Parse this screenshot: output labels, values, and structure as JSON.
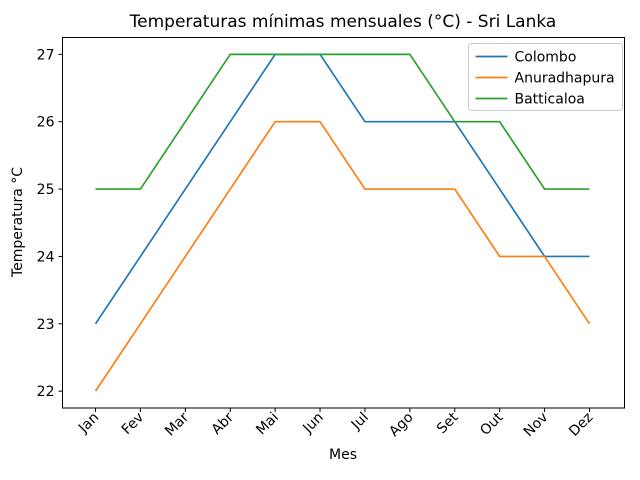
{
  "chart_data": {
    "type": "line",
    "title": "Temperaturas mínimas mensuales (°C) - Sri Lanka",
    "xlabel": "Mes",
    "ylabel": "Temperatura °C",
    "categories": [
      "Jan",
      "Fev",
      "Mar",
      "Abr",
      "Mai",
      "Jun",
      "Jul",
      "Ago",
      "Set",
      "Out",
      "Nov",
      "Dez"
    ],
    "yticks": [
      22,
      23,
      24,
      25,
      26,
      27
    ],
    "ylim": [
      21.75,
      27.25
    ],
    "grid": false,
    "legend_position": "upper right",
    "axis_color": "#000000",
    "legend_border_color": "#cccccc",
    "legend_background": "#ffffff",
    "series": [
      {
        "name": "Colombo",
        "color": "#1f77b4",
        "values": [
          23,
          24,
          25,
          26,
          27,
          27,
          26,
          26,
          26,
          25,
          24,
          24
        ]
      },
      {
        "name": "Anuradhapura",
        "color": "#ff7f0e",
        "values": [
          22,
          23,
          24,
          25,
          26,
          26,
          25,
          25,
          25,
          24,
          24,
          23
        ]
      },
      {
        "name": "Batticaloa",
        "color": "#2ca02c",
        "values": [
          25,
          25,
          26,
          27,
          27,
          27,
          27,
          27,
          26,
          26,
          25,
          25
        ]
      }
    ]
  }
}
